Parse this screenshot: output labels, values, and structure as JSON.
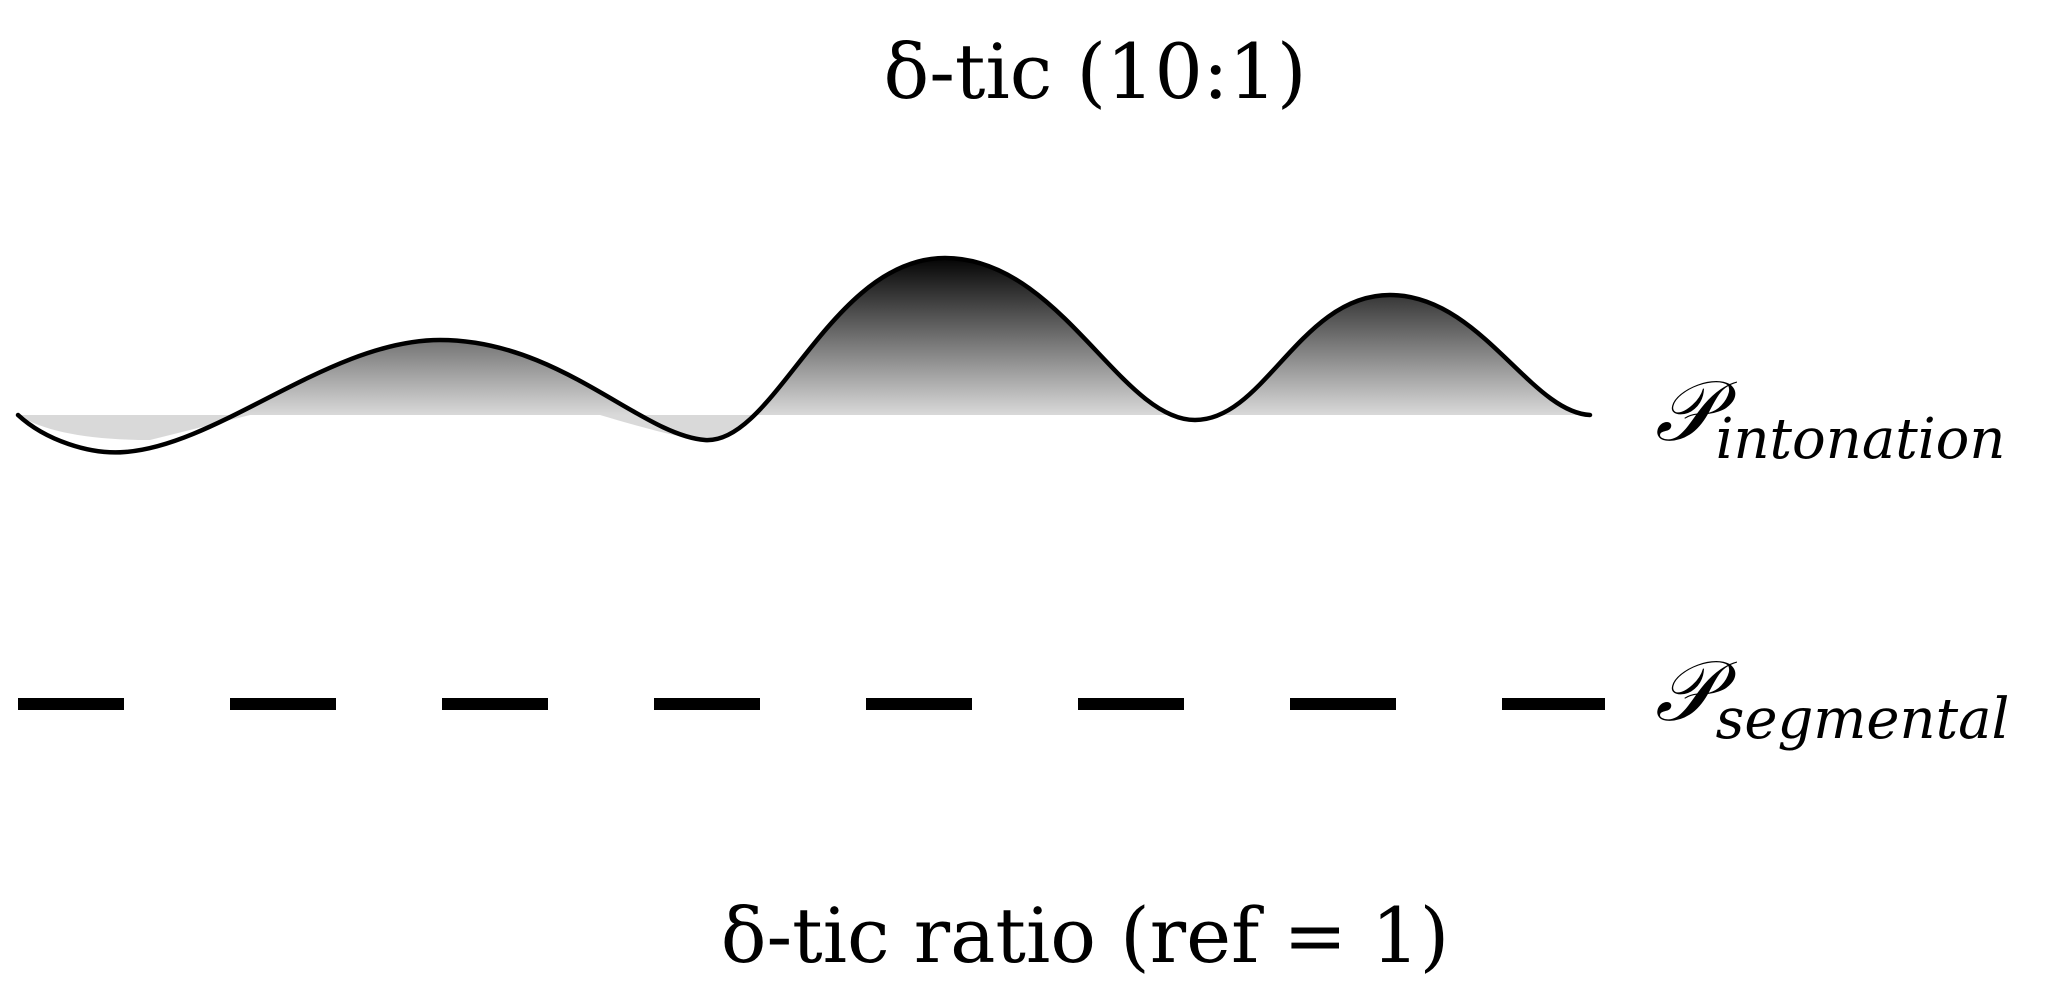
{
  "title": "δ-tic (10:1)",
  "footer": "δ-tic ratio (ref = 1)",
  "tracks": [
    {
      "id": "intonation",
      "symbol": "𝒫",
      "subscript": "intonation",
      "style": "wave"
    },
    {
      "id": "segmental",
      "symbol": "𝒫",
      "subscript": "segmental",
      "style": "dashed"
    }
  ],
  "colors": {
    "stroke": "#000000",
    "fill_peak": "#000000",
    "fill_base": "#d9d9d9",
    "background": "#ffffff"
  }
}
